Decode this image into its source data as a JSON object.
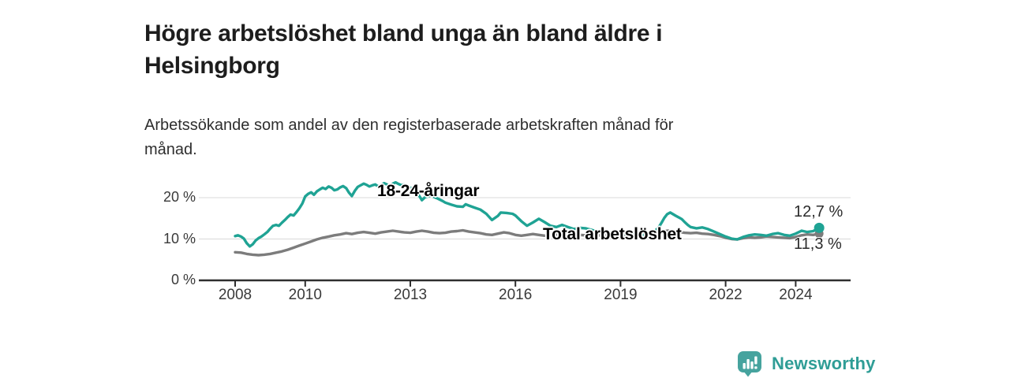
{
  "header": {
    "title": "Högre arbetslöshet bland unga än bland äldre i Helsingborg",
    "subtitle": "Arbetssökande som andel av den registerbaserade arbetskraften månad för månad."
  },
  "branding": {
    "name": "Newsworthy",
    "logo_icon": "bar-chart-speech-bubble-icon",
    "color": "#2f9d96",
    "bubble_color": "#46a39e"
  },
  "chart_data": {
    "type": "line",
    "title": "Högre arbetslöshet bland unga än bland äldre i Helsingborg",
    "xlabel": "",
    "ylabel": "",
    "x_range": [
      2007.9,
      2025.6
    ],
    "ylim": [
      0,
      24
    ],
    "grid": "horizontal",
    "grid_color": "#d8d8d8",
    "axis_color": "#2f2f2f",
    "x_axis": {
      "ticks": [
        {
          "value": 2008,
          "label": "2008"
        },
        {
          "value": 2010,
          "label": "2010"
        },
        {
          "value": 2013,
          "label": "2013"
        },
        {
          "value": 2016,
          "label": "2016"
        },
        {
          "value": 2019,
          "label": "2019"
        },
        {
          "value": 2022,
          "label": "2022"
        },
        {
          "value": 2024,
          "label": "2024"
        }
      ]
    },
    "y_axis": {
      "ticks": [
        {
          "value": 0,
          "label": "0 %"
        },
        {
          "value": 10,
          "label": "10 %"
        },
        {
          "value": 20,
          "label": "20 %"
        }
      ]
    },
    "series": [
      {
        "name": "Total arbetslöshet",
        "color": "#7c7c7c",
        "end_label": "11,3 %",
        "end_value": 11.3,
        "points": [
          [
            2008.0,
            6.8
          ],
          [
            2008.17,
            6.7
          ],
          [
            2008.33,
            6.4
          ],
          [
            2008.5,
            6.2
          ],
          [
            2008.67,
            6.1
          ],
          [
            2008.83,
            6.2
          ],
          [
            2009.0,
            6.4
          ],
          [
            2009.17,
            6.7
          ],
          [
            2009.33,
            7.0
          ],
          [
            2009.5,
            7.4
          ],
          [
            2009.67,
            7.9
          ],
          [
            2009.83,
            8.4
          ],
          [
            2010.0,
            8.9
          ],
          [
            2010.17,
            9.4
          ],
          [
            2010.33,
            9.9
          ],
          [
            2010.5,
            10.3
          ],
          [
            2010.67,
            10.6
          ],
          [
            2010.83,
            10.9
          ],
          [
            2011.0,
            11.1
          ],
          [
            2011.17,
            11.4
          ],
          [
            2011.33,
            11.2
          ],
          [
            2011.5,
            11.5
          ],
          [
            2011.67,
            11.7
          ],
          [
            2011.83,
            11.5
          ],
          [
            2012.0,
            11.3
          ],
          [
            2012.17,
            11.6
          ],
          [
            2012.33,
            11.8
          ],
          [
            2012.5,
            12.0
          ],
          [
            2012.67,
            11.8
          ],
          [
            2012.83,
            11.6
          ],
          [
            2013.0,
            11.5
          ],
          [
            2013.17,
            11.8
          ],
          [
            2013.33,
            12.0
          ],
          [
            2013.5,
            11.8
          ],
          [
            2013.67,
            11.5
          ],
          [
            2013.83,
            11.4
          ],
          [
            2014.0,
            11.5
          ],
          [
            2014.17,
            11.8
          ],
          [
            2014.33,
            11.9
          ],
          [
            2014.5,
            12.1
          ],
          [
            2014.67,
            11.8
          ],
          [
            2014.83,
            11.6
          ],
          [
            2015.0,
            11.4
          ],
          [
            2015.17,
            11.1
          ],
          [
            2015.33,
            11.0
          ],
          [
            2015.5,
            11.3
          ],
          [
            2015.67,
            11.6
          ],
          [
            2015.83,
            11.4
          ],
          [
            2016.0,
            11.0
          ],
          [
            2016.17,
            10.8
          ],
          [
            2016.33,
            11.0
          ],
          [
            2016.5,
            11.2
          ],
          [
            2016.67,
            11.0
          ],
          [
            2016.83,
            10.8
          ],
          [
            2017.0,
            10.9
          ],
          [
            2017.17,
            11.1
          ],
          [
            2017.33,
            10.9
          ],
          [
            2017.5,
            10.7
          ],
          [
            2017.67,
            10.8
          ],
          [
            2017.83,
            11.0
          ],
          [
            2018.0,
            10.9
          ],
          [
            2018.17,
            10.7
          ],
          [
            2018.33,
            10.8
          ],
          [
            2018.5,
            11.0
          ],
          [
            2018.67,
            10.9
          ],
          [
            2018.83,
            10.8
          ],
          [
            2019.0,
            11.0
          ],
          [
            2019.17,
            11.1
          ],
          [
            2019.33,
            11.0
          ],
          [
            2019.5,
            10.9
          ],
          [
            2019.67,
            11.0
          ],
          [
            2019.83,
            11.2
          ],
          [
            2020.0,
            11.4
          ],
          [
            2020.17,
            11.7
          ],
          [
            2020.33,
            12.0
          ],
          [
            2020.5,
            11.9
          ],
          [
            2020.67,
            11.7
          ],
          [
            2020.83,
            11.5
          ],
          [
            2021.0,
            11.4
          ],
          [
            2021.17,
            11.5
          ],
          [
            2021.33,
            11.3
          ],
          [
            2021.5,
            11.2
          ],
          [
            2021.67,
            11.0
          ],
          [
            2021.83,
            10.7
          ],
          [
            2022.0,
            10.3
          ],
          [
            2022.17,
            10.0
          ],
          [
            2022.33,
            9.9
          ],
          [
            2022.5,
            10.2
          ],
          [
            2022.67,
            10.4
          ],
          [
            2022.83,
            10.3
          ],
          [
            2023.0,
            10.4
          ],
          [
            2023.17,
            10.6
          ],
          [
            2023.33,
            10.5
          ],
          [
            2023.5,
            10.4
          ],
          [
            2023.67,
            10.3
          ],
          [
            2023.83,
            10.2
          ],
          [
            2024.0,
            10.5
          ],
          [
            2024.17,
            10.9
          ],
          [
            2024.33,
            11.1
          ],
          [
            2024.5,
            11.0
          ],
          [
            2024.67,
            11.3
          ]
        ]
      },
      {
        "name": "18-24-åringar",
        "color": "#1fa394",
        "end_label": "12,7 %",
        "end_value": 12.7,
        "points": [
          [
            2008.0,
            10.7
          ],
          [
            2008.08,
            10.9
          ],
          [
            2008.17,
            10.6
          ],
          [
            2008.25,
            10.1
          ],
          [
            2008.33,
            9.0
          ],
          [
            2008.42,
            8.2
          ],
          [
            2008.5,
            8.7
          ],
          [
            2008.58,
            9.6
          ],
          [
            2008.67,
            10.2
          ],
          [
            2008.75,
            10.6
          ],
          [
            2008.83,
            11.1
          ],
          [
            2008.92,
            11.7
          ],
          [
            2009.0,
            12.5
          ],
          [
            2009.08,
            13.2
          ],
          [
            2009.17,
            13.4
          ],
          [
            2009.25,
            13.2
          ],
          [
            2009.33,
            13.9
          ],
          [
            2009.42,
            14.6
          ],
          [
            2009.5,
            15.3
          ],
          [
            2009.58,
            15.9
          ],
          [
            2009.67,
            15.7
          ],
          [
            2009.75,
            16.5
          ],
          [
            2009.83,
            17.4
          ],
          [
            2009.92,
            18.6
          ],
          [
            2010.0,
            20.3
          ],
          [
            2010.08,
            20.9
          ],
          [
            2010.17,
            21.3
          ],
          [
            2010.25,
            20.7
          ],
          [
            2010.33,
            21.5
          ],
          [
            2010.42,
            22.0
          ],
          [
            2010.5,
            22.4
          ],
          [
            2010.58,
            22.1
          ],
          [
            2010.67,
            22.7
          ],
          [
            2010.75,
            22.4
          ],
          [
            2010.83,
            21.8
          ],
          [
            2010.92,
            22.0
          ],
          [
            2011.0,
            22.5
          ],
          [
            2011.08,
            22.8
          ],
          [
            2011.17,
            22.3
          ],
          [
            2011.25,
            21.2
          ],
          [
            2011.33,
            20.4
          ],
          [
            2011.42,
            21.7
          ],
          [
            2011.5,
            22.6
          ],
          [
            2011.58,
            23.0
          ],
          [
            2011.67,
            23.4
          ],
          [
            2011.75,
            23.1
          ],
          [
            2011.83,
            22.7
          ],
          [
            2011.92,
            23.0
          ],
          [
            2012.0,
            23.2
          ],
          [
            2012.08,
            22.7
          ],
          [
            2012.17,
            23.1
          ],
          [
            2012.25,
            23.5
          ],
          [
            2012.33,
            23.2
          ],
          [
            2012.42,
            22.9
          ],
          [
            2012.5,
            23.4
          ],
          [
            2012.58,
            23.7
          ],
          [
            2012.67,
            23.3
          ],
          [
            2012.75,
            23.0
          ],
          [
            2012.83,
            23.2
          ],
          [
            2012.92,
            22.7
          ],
          [
            2013.0,
            22.4
          ],
          [
            2013.17,
            21.6
          ],
          [
            2013.33,
            19.4
          ],
          [
            2013.42,
            20.1
          ],
          [
            2013.58,
            20.5
          ],
          [
            2013.75,
            19.9
          ],
          [
            2013.92,
            19.2
          ],
          [
            2014.0,
            18.8
          ],
          [
            2014.17,
            18.3
          ],
          [
            2014.33,
            17.9
          ],
          [
            2014.5,
            17.8
          ],
          [
            2014.58,
            18.4
          ],
          [
            2014.67,
            18.1
          ],
          [
            2014.83,
            17.6
          ],
          [
            2015.0,
            17.1
          ],
          [
            2015.17,
            16.1
          ],
          [
            2015.33,
            14.6
          ],
          [
            2015.5,
            15.6
          ],
          [
            2015.58,
            16.4
          ],
          [
            2015.75,
            16.3
          ],
          [
            2015.92,
            16.1
          ],
          [
            2016.0,
            15.7
          ],
          [
            2016.17,
            14.3
          ],
          [
            2016.33,
            13.2
          ],
          [
            2016.5,
            14.0
          ],
          [
            2016.67,
            14.9
          ],
          [
            2016.83,
            14.1
          ],
          [
            2017.0,
            13.2
          ],
          [
            2017.17,
            12.9
          ],
          [
            2017.33,
            13.4
          ],
          [
            2017.5,
            12.9
          ],
          [
            2017.67,
            12.4
          ],
          [
            2017.83,
            12.7
          ],
          [
            2018.0,
            12.6
          ],
          [
            2018.17,
            12.2
          ],
          [
            2018.33,
            11.8
          ],
          [
            2018.5,
            12.0
          ],
          [
            2018.67,
            11.6
          ],
          [
            2018.83,
            11.3
          ],
          [
            2019.0,
            11.4
          ],
          [
            2019.17,
            11.2
          ],
          [
            2019.33,
            11.0
          ],
          [
            2019.5,
            11.3
          ],
          [
            2019.67,
            11.0
          ],
          [
            2019.83,
            11.3
          ],
          [
            2020.0,
            12.1
          ],
          [
            2020.08,
            12.7
          ],
          [
            2020.17,
            13.9
          ],
          [
            2020.25,
            15.1
          ],
          [
            2020.33,
            16.0
          ],
          [
            2020.42,
            16.4
          ],
          [
            2020.5,
            16.0
          ],
          [
            2020.58,
            15.6
          ],
          [
            2020.67,
            15.2
          ],
          [
            2020.75,
            14.8
          ],
          [
            2020.83,
            14.1
          ],
          [
            2020.92,
            13.4
          ],
          [
            2021.0,
            12.9
          ],
          [
            2021.17,
            12.6
          ],
          [
            2021.33,
            12.8
          ],
          [
            2021.5,
            12.4
          ],
          [
            2021.67,
            11.8
          ],
          [
            2021.83,
            11.2
          ],
          [
            2022.0,
            10.6
          ],
          [
            2022.17,
            10.1
          ],
          [
            2022.33,
            9.9
          ],
          [
            2022.5,
            10.5
          ],
          [
            2022.67,
            10.9
          ],
          [
            2022.83,
            11.1
          ],
          [
            2023.0,
            11.0
          ],
          [
            2023.17,
            10.8
          ],
          [
            2023.33,
            11.2
          ],
          [
            2023.5,
            11.4
          ],
          [
            2023.67,
            11.0
          ],
          [
            2023.83,
            10.8
          ],
          [
            2024.0,
            11.3
          ],
          [
            2024.17,
            12.0
          ],
          [
            2024.33,
            11.7
          ],
          [
            2024.5,
            11.9
          ],
          [
            2024.67,
            12.7
          ]
        ]
      }
    ]
  }
}
